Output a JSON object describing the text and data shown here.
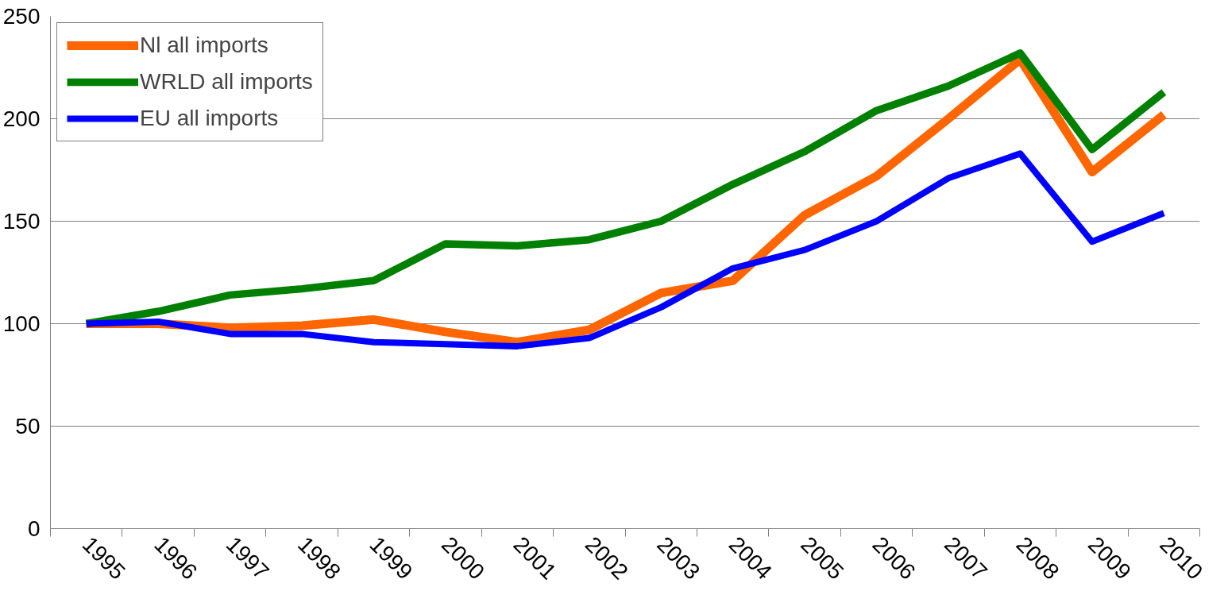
{
  "chart_data": {
    "type": "line",
    "categories": [
      "1995",
      "1996",
      "1997",
      "1998",
      "1999",
      "2000",
      "2001",
      "2002",
      "2003",
      "2004",
      "2005",
      "2006",
      "2007",
      "2008",
      "2009",
      "2010"
    ],
    "series": [
      {
        "name": "Nl all imports",
        "color": "#ff6600",
        "values": [
          100,
          100,
          98,
          99,
          102,
          96,
          91,
          97,
          115,
          121,
          153,
          172,
          200,
          229,
          174,
          202
        ]
      },
      {
        "name": "WRLD all imports",
        "color": "#008000",
        "values": [
          100,
          106,
          114,
          117,
          121,
          139,
          138,
          141,
          150,
          168,
          184,
          204,
          216,
          232,
          185,
          213
        ]
      },
      {
        "name": "EU all imports",
        "color": "#0000ff",
        "values": [
          100,
          101,
          95,
          95,
          91,
          90,
          89,
          93,
          108,
          127,
          136,
          150,
          171,
          183,
          140,
          154
        ]
      }
    ],
    "ylim": [
      0,
      250
    ],
    "yticks": [
      0,
      50,
      100,
      150,
      200,
      250
    ],
    "grid": "y",
    "legend": "top left",
    "marker": "none",
    "line_style": "solid"
  }
}
